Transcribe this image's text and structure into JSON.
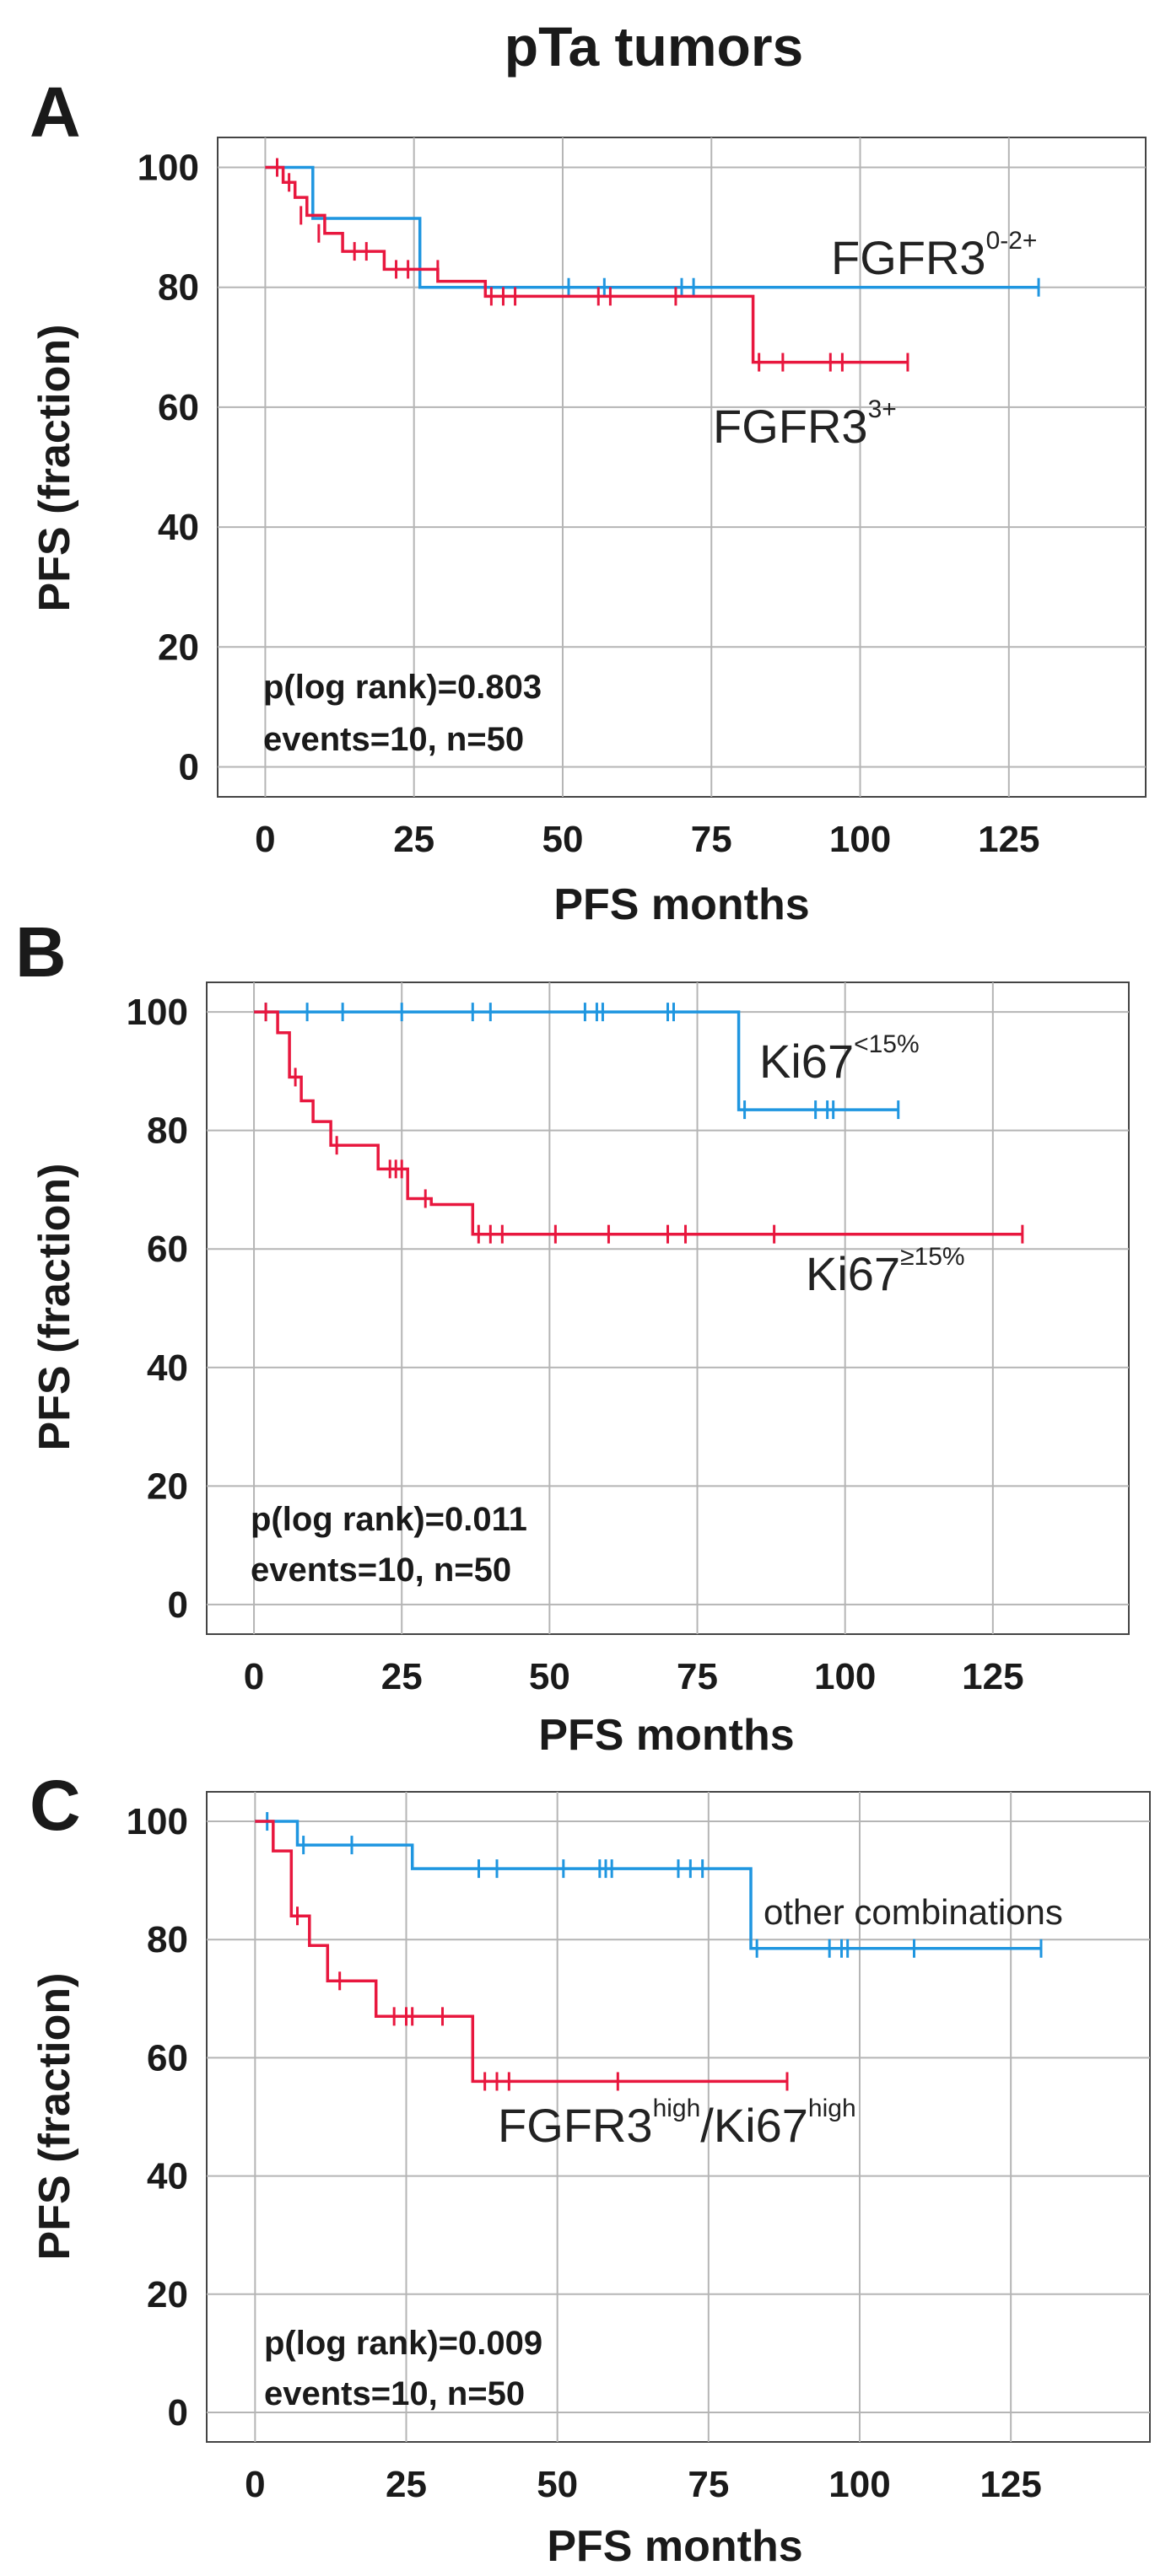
{
  "figure_title": "pTa tumors",
  "colors": {
    "blue": "#1f96e0",
    "red": "#e8173e",
    "grid": "#b5b5b5",
    "axis": "#444444"
  },
  "chart_data": [
    {
      "panel": "A",
      "type": "line",
      "subtype": "kaplan-meier-step",
      "ylabel": "PFS (fraction)",
      "xlabel": "PFS months",
      "xlim": [
        -8,
        148
      ],
      "ylim": [
        -5,
        105
      ],
      "x_ticks": [
        0,
        25,
        50,
        75,
        100,
        125
      ],
      "y_ticks": [
        0,
        20,
        40,
        60,
        80,
        100
      ],
      "grid": true,
      "stats": {
        "p_text": "p(log rank)=0.803",
        "events_text": "events=10, n=50"
      },
      "series": [
        {
          "name": "FGFR3 0-2+",
          "label_base": "FGFR3",
          "label_sup": "0-2+",
          "color": "blue",
          "x": [
            0,
            8,
            8,
            26,
            26,
            130
          ],
          "y": [
            100,
            100,
            91.5,
            91.5,
            80,
            80
          ],
          "censored": [
            [
              51,
              80
            ],
            [
              57,
              80
            ],
            [
              70,
              80
            ],
            [
              72,
              80
            ],
            [
              130,
              80
            ]
          ]
        },
        {
          "name": "FGFR3 3+",
          "label_base": "FGFR3",
          "label_sup": "3+",
          "color": "red",
          "x": [
            0,
            3,
            3,
            5,
            5,
            7,
            7,
            10,
            10,
            13,
            13,
            20,
            20,
            29,
            29,
            37,
            37,
            82,
            82,
            108
          ],
          "y": [
            100,
            100,
            97.5,
            97.5,
            95,
            95,
            92,
            92,
            89,
            89,
            86,
            86,
            83,
            83,
            81,
            81,
            78.5,
            78.5,
            67.5,
            67.5
          ],
          "censored": [
            [
              2,
              100
            ],
            [
              4,
              97.5
            ],
            [
              6,
              92
            ],
            [
              9,
              89
            ],
            [
              15,
              86
            ],
            [
              17,
              86
            ],
            [
              22,
              83
            ],
            [
              24,
              83
            ],
            [
              29,
              83
            ],
            [
              38,
              78.5
            ],
            [
              40,
              78.5
            ],
            [
              42,
              78.5
            ],
            [
              56,
              78.5
            ],
            [
              58,
              78.5
            ],
            [
              69,
              78.5
            ],
            [
              83,
              67.5
            ],
            [
              87,
              67.5
            ],
            [
              95,
              67.5
            ],
            [
              97,
              67.5
            ],
            [
              108,
              67.5
            ]
          ]
        }
      ]
    },
    {
      "panel": "B",
      "type": "line",
      "subtype": "kaplan-meier-step",
      "ylabel": "PFS (fraction)",
      "xlabel": "PFS months",
      "xlim": [
        -8,
        148
      ],
      "ylim": [
        -5,
        105
      ],
      "x_ticks": [
        0,
        25,
        50,
        75,
        100,
        125
      ],
      "y_ticks": [
        0,
        20,
        40,
        60,
        80,
        100
      ],
      "grid": true,
      "stats": {
        "p_text": "p(log rank)=0.011",
        "events_text": "events=10, n=50"
      },
      "series": [
        {
          "name": "Ki67 <15%",
          "label_base": "Ki67",
          "label_sup": "<15%",
          "color": "blue",
          "x": [
            0,
            82,
            82,
            109
          ],
          "y": [
            100,
            100,
            83.5,
            83.5
          ],
          "censored": [
            [
              2,
              100
            ],
            [
              9,
              100
            ],
            [
              15,
              100
            ],
            [
              25,
              100
            ],
            [
              37,
              100
            ],
            [
              40,
              100
            ],
            [
              56,
              100
            ],
            [
              58,
              100
            ],
            [
              59,
              100
            ],
            [
              70,
              100
            ],
            [
              71,
              100
            ],
            [
              83,
              83.5
            ],
            [
              95,
              83.5
            ],
            [
              97,
              83.5
            ],
            [
              98,
              83.5
            ],
            [
              109,
              83.5
            ]
          ]
        },
        {
          "name": "Ki67 ≥15%",
          "label_base": "Ki67",
          "label_sup": "≥15%",
          "color": "red",
          "x": [
            0,
            4,
            4,
            6,
            6,
            8,
            8,
            10,
            10,
            13,
            13,
            21,
            21,
            26,
            26,
            30,
            30,
            37,
            37,
            130
          ],
          "y": [
            100,
            100,
            96.5,
            96.5,
            89,
            89,
            85,
            85,
            81.5,
            81.5,
            77.5,
            77.5,
            73.5,
            73.5,
            68.5,
            68.5,
            67.5,
            67.5,
            62.5,
            62.5
          ],
          "censored": [
            [
              2,
              100
            ],
            [
              7,
              89
            ],
            [
              14,
              77.5
            ],
            [
              23,
              73.5
            ],
            [
              24,
              73.5
            ],
            [
              25,
              73.5
            ],
            [
              29,
              68.5
            ],
            [
              38,
              62.5
            ],
            [
              40,
              62.5
            ],
            [
              42,
              62.5
            ],
            [
              51,
              62.5
            ],
            [
              60,
              62.5
            ],
            [
              70,
              62.5
            ],
            [
              73,
              62.5
            ],
            [
              88,
              62.5
            ],
            [
              130,
              62.5
            ]
          ]
        }
      ]
    },
    {
      "panel": "C",
      "type": "line",
      "subtype": "kaplan-meier-step",
      "ylabel": "PFS (fraction)",
      "xlabel": "PFS months",
      "xlim": [
        -8,
        148
      ],
      "ylim": [
        -5,
        105
      ],
      "x_ticks": [
        0,
        25,
        50,
        75,
        100,
        125
      ],
      "y_ticks": [
        0,
        20,
        40,
        60,
        80,
        100
      ],
      "grid": true,
      "stats": {
        "p_text": "p(log rank)=0.009",
        "events_text": "events=10, n=50"
      },
      "series": [
        {
          "name": "other combinations",
          "label_base": "other combinations",
          "label_sup": "",
          "color": "blue",
          "x": [
            0,
            7,
            7,
            26,
            26,
            82,
            82,
            130
          ],
          "y": [
            100,
            100,
            96,
            96,
            92,
            92,
            78.5,
            78.5
          ],
          "censored": [
            [
              2,
              100
            ],
            [
              8,
              96
            ],
            [
              16,
              96
            ],
            [
              37,
              92
            ],
            [
              40,
              92
            ],
            [
              51,
              92
            ],
            [
              57,
              92
            ],
            [
              58,
              92
            ],
            [
              59,
              92
            ],
            [
              70,
              92
            ],
            [
              72,
              92
            ],
            [
              74,
              92
            ],
            [
              83,
              78.5
            ],
            [
              95,
              78.5
            ],
            [
              97,
              78.5
            ],
            [
              98,
              78.5
            ],
            [
              109,
              78.5
            ],
            [
              130,
              78.5
            ]
          ]
        },
        {
          "name": "FGFR3high/Ki67high",
          "label_base": "FGFR3",
          "label_sup": "high",
          "label_mid": "/Ki67",
          "label_sup2": "high",
          "color": "red",
          "x": [
            0,
            3,
            3,
            6,
            6,
            9,
            9,
            12,
            12,
            20,
            20,
            36,
            36,
            88
          ],
          "y": [
            100,
            100,
            95,
            95,
            84,
            84,
            79,
            79,
            73,
            73,
            67,
            67,
            56,
            56
          ],
          "censored": [
            [
              7,
              84
            ],
            [
              14,
              73
            ],
            [
              23,
              67
            ],
            [
              25,
              67
            ],
            [
              26,
              67
            ],
            [
              31,
              67
            ],
            [
              38,
              56
            ],
            [
              40,
              56
            ],
            [
              42,
              56
            ],
            [
              60,
              56
            ],
            [
              88,
              56
            ]
          ]
        }
      ]
    }
  ]
}
